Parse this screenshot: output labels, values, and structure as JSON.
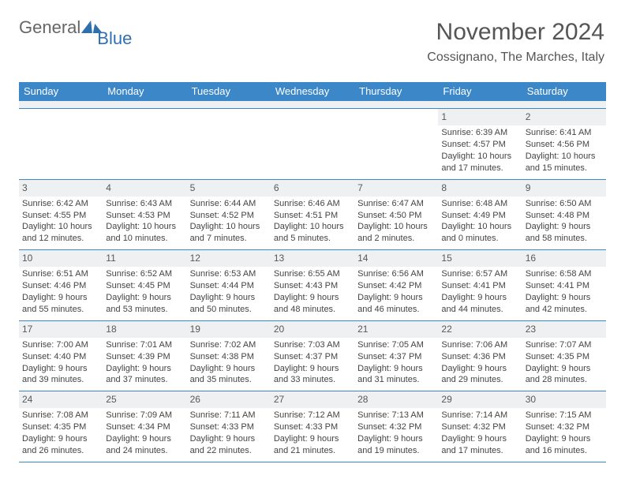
{
  "brand": {
    "part1": "General",
    "part2": "Blue"
  },
  "title": "November 2024",
  "location": "Cossignano, The Marches, Italy",
  "colors": {
    "header_bar": "#3b87c8",
    "band": "#eef0f2",
    "text": "#444444",
    "title": "#555555"
  },
  "layout": {
    "columns": 7,
    "rows": 5
  },
  "day_headers": [
    "Sunday",
    "Monday",
    "Tuesday",
    "Wednesday",
    "Thursday",
    "Friday",
    "Saturday"
  ],
  "weeks": [
    [
      {
        "n": "",
        "sunrise": "",
        "sunset": "",
        "daylight": ""
      },
      {
        "n": "",
        "sunrise": "",
        "sunset": "",
        "daylight": ""
      },
      {
        "n": "",
        "sunrise": "",
        "sunset": "",
        "daylight": ""
      },
      {
        "n": "",
        "sunrise": "",
        "sunset": "",
        "daylight": ""
      },
      {
        "n": "",
        "sunrise": "",
        "sunset": "",
        "daylight": ""
      },
      {
        "n": "1",
        "sunrise": "Sunrise: 6:39 AM",
        "sunset": "Sunset: 4:57 PM",
        "daylight": "Daylight: 10 hours and 17 minutes."
      },
      {
        "n": "2",
        "sunrise": "Sunrise: 6:41 AM",
        "sunset": "Sunset: 4:56 PM",
        "daylight": "Daylight: 10 hours and 15 minutes."
      }
    ],
    [
      {
        "n": "3",
        "sunrise": "Sunrise: 6:42 AM",
        "sunset": "Sunset: 4:55 PM",
        "daylight": "Daylight: 10 hours and 12 minutes."
      },
      {
        "n": "4",
        "sunrise": "Sunrise: 6:43 AM",
        "sunset": "Sunset: 4:53 PM",
        "daylight": "Daylight: 10 hours and 10 minutes."
      },
      {
        "n": "5",
        "sunrise": "Sunrise: 6:44 AM",
        "sunset": "Sunset: 4:52 PM",
        "daylight": "Daylight: 10 hours and 7 minutes."
      },
      {
        "n": "6",
        "sunrise": "Sunrise: 6:46 AM",
        "sunset": "Sunset: 4:51 PM",
        "daylight": "Daylight: 10 hours and 5 minutes."
      },
      {
        "n": "7",
        "sunrise": "Sunrise: 6:47 AM",
        "sunset": "Sunset: 4:50 PM",
        "daylight": "Daylight: 10 hours and 2 minutes."
      },
      {
        "n": "8",
        "sunrise": "Sunrise: 6:48 AM",
        "sunset": "Sunset: 4:49 PM",
        "daylight": "Daylight: 10 hours and 0 minutes."
      },
      {
        "n": "9",
        "sunrise": "Sunrise: 6:50 AM",
        "sunset": "Sunset: 4:48 PM",
        "daylight": "Daylight: 9 hours and 58 minutes."
      }
    ],
    [
      {
        "n": "10",
        "sunrise": "Sunrise: 6:51 AM",
        "sunset": "Sunset: 4:46 PM",
        "daylight": "Daylight: 9 hours and 55 minutes."
      },
      {
        "n": "11",
        "sunrise": "Sunrise: 6:52 AM",
        "sunset": "Sunset: 4:45 PM",
        "daylight": "Daylight: 9 hours and 53 minutes."
      },
      {
        "n": "12",
        "sunrise": "Sunrise: 6:53 AM",
        "sunset": "Sunset: 4:44 PM",
        "daylight": "Daylight: 9 hours and 50 minutes."
      },
      {
        "n": "13",
        "sunrise": "Sunrise: 6:55 AM",
        "sunset": "Sunset: 4:43 PM",
        "daylight": "Daylight: 9 hours and 48 minutes."
      },
      {
        "n": "14",
        "sunrise": "Sunrise: 6:56 AM",
        "sunset": "Sunset: 4:42 PM",
        "daylight": "Daylight: 9 hours and 46 minutes."
      },
      {
        "n": "15",
        "sunrise": "Sunrise: 6:57 AM",
        "sunset": "Sunset: 4:41 PM",
        "daylight": "Daylight: 9 hours and 44 minutes."
      },
      {
        "n": "16",
        "sunrise": "Sunrise: 6:58 AM",
        "sunset": "Sunset: 4:41 PM",
        "daylight": "Daylight: 9 hours and 42 minutes."
      }
    ],
    [
      {
        "n": "17",
        "sunrise": "Sunrise: 7:00 AM",
        "sunset": "Sunset: 4:40 PM",
        "daylight": "Daylight: 9 hours and 39 minutes."
      },
      {
        "n": "18",
        "sunrise": "Sunrise: 7:01 AM",
        "sunset": "Sunset: 4:39 PM",
        "daylight": "Daylight: 9 hours and 37 minutes."
      },
      {
        "n": "19",
        "sunrise": "Sunrise: 7:02 AM",
        "sunset": "Sunset: 4:38 PM",
        "daylight": "Daylight: 9 hours and 35 minutes."
      },
      {
        "n": "20",
        "sunrise": "Sunrise: 7:03 AM",
        "sunset": "Sunset: 4:37 PM",
        "daylight": "Daylight: 9 hours and 33 minutes."
      },
      {
        "n": "21",
        "sunrise": "Sunrise: 7:05 AM",
        "sunset": "Sunset: 4:37 PM",
        "daylight": "Daylight: 9 hours and 31 minutes."
      },
      {
        "n": "22",
        "sunrise": "Sunrise: 7:06 AM",
        "sunset": "Sunset: 4:36 PM",
        "daylight": "Daylight: 9 hours and 29 minutes."
      },
      {
        "n": "23",
        "sunrise": "Sunrise: 7:07 AM",
        "sunset": "Sunset: 4:35 PM",
        "daylight": "Daylight: 9 hours and 28 minutes."
      }
    ],
    [
      {
        "n": "24",
        "sunrise": "Sunrise: 7:08 AM",
        "sunset": "Sunset: 4:35 PM",
        "daylight": "Daylight: 9 hours and 26 minutes."
      },
      {
        "n": "25",
        "sunrise": "Sunrise: 7:09 AM",
        "sunset": "Sunset: 4:34 PM",
        "daylight": "Daylight: 9 hours and 24 minutes."
      },
      {
        "n": "26",
        "sunrise": "Sunrise: 7:11 AM",
        "sunset": "Sunset: 4:33 PM",
        "daylight": "Daylight: 9 hours and 22 minutes."
      },
      {
        "n": "27",
        "sunrise": "Sunrise: 7:12 AM",
        "sunset": "Sunset: 4:33 PM",
        "daylight": "Daylight: 9 hours and 21 minutes."
      },
      {
        "n": "28",
        "sunrise": "Sunrise: 7:13 AM",
        "sunset": "Sunset: 4:32 PM",
        "daylight": "Daylight: 9 hours and 19 minutes."
      },
      {
        "n": "29",
        "sunrise": "Sunrise: 7:14 AM",
        "sunset": "Sunset: 4:32 PM",
        "daylight": "Daylight: 9 hours and 17 minutes."
      },
      {
        "n": "30",
        "sunrise": "Sunrise: 7:15 AM",
        "sunset": "Sunset: 4:32 PM",
        "daylight": "Daylight: 9 hours and 16 minutes."
      }
    ]
  ]
}
